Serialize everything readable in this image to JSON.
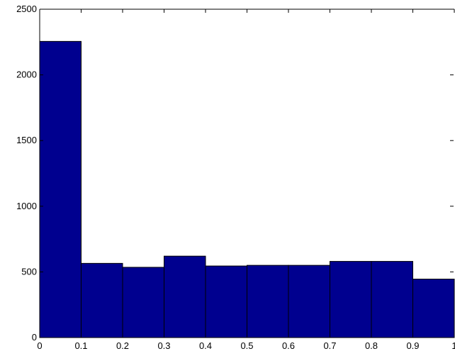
{
  "chart_data": {
    "type": "bar",
    "title": "",
    "xlabel": "",
    "ylabel": "",
    "bin_edges": [
      0,
      0.1,
      0.2,
      0.3,
      0.4,
      0.5,
      0.6,
      0.7,
      0.8,
      0.9,
      1
    ],
    "values": [
      2255,
      565,
      535,
      620,
      545,
      550,
      550,
      580,
      580,
      445
    ],
    "xlim": [
      0,
      1
    ],
    "ylim": [
      0,
      2500
    ],
    "x_ticks": [
      0,
      0.1,
      0.2,
      0.3,
      0.4,
      0.5,
      0.6,
      0.7,
      0.8,
      0.9,
      1
    ],
    "x_tick_labels": [
      "0",
      "0.1",
      "0.2",
      "0.3",
      "0.4",
      "0.5",
      "0.6",
      "0.7",
      "0.8",
      "0.9",
      "1"
    ],
    "y_ticks": [
      0,
      500,
      1000,
      1500,
      2000,
      2500
    ],
    "y_tick_labels": [
      "0",
      "500",
      "1000",
      "1500",
      "2000",
      "2500"
    ],
    "grid": false,
    "legend": "none",
    "bar_color": "#00008F",
    "edge_color": "#000000"
  }
}
